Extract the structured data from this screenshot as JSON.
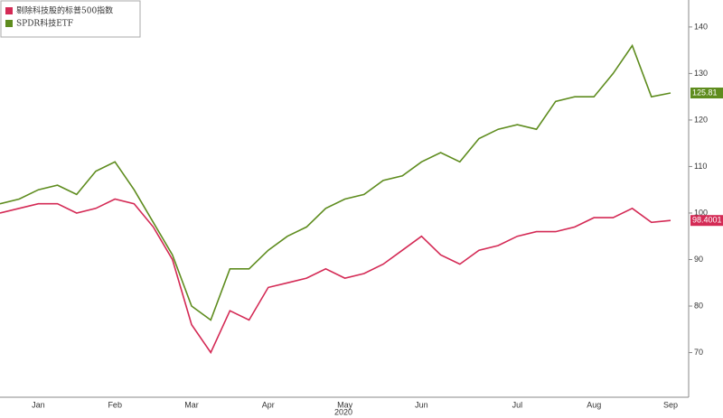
{
  "chart_data": {
    "type": "line",
    "x_label": "2020",
    "categories": [
      null,
      null,
      "Jan",
      null,
      null,
      null,
      "Feb",
      null,
      null,
      null,
      "Mar",
      null,
      null,
      null,
      "Apr",
      null,
      null,
      null,
      "May",
      null,
      null,
      null,
      "Jun",
      null,
      null,
      null,
      null,
      "Jul",
      null,
      null,
      null,
      "Aug",
      null,
      null,
      null,
      "Sep"
    ],
    "series": [
      {
        "name": "剔除科技股的标普500指数",
        "color": "#d42a55",
        "values": [
          100,
          101,
          102,
          102,
          100,
          101,
          103,
          102,
          97,
          90,
          76,
          70,
          79,
          77,
          84,
          85,
          86,
          88,
          86,
          87,
          89,
          92,
          95,
          91,
          89,
          92,
          93,
          95,
          96,
          96,
          97,
          99,
          99,
          101,
          98,
          98.4001
        ]
      },
      {
        "name": "SPDR科技ETF",
        "color": "#5e8c1e",
        "values": [
          102,
          103,
          105,
          106,
          104,
          109,
          111,
          105,
          98,
          91,
          80,
          77,
          88,
          88,
          92,
          95,
          97,
          101,
          103,
          104,
          107,
          108,
          111,
          113,
          111,
          116,
          118,
          119,
          118,
          124,
          125,
          125,
          130,
          136,
          125,
          125.81
        ]
      }
    ],
    "ylim": [
      60.4,
      145.8
    ],
    "yticks": [
      70,
      80,
      90,
      100,
      110,
      120,
      130,
      140
    ],
    "y_axis_side": "right",
    "grid": false,
    "legend": "top-left"
  }
}
